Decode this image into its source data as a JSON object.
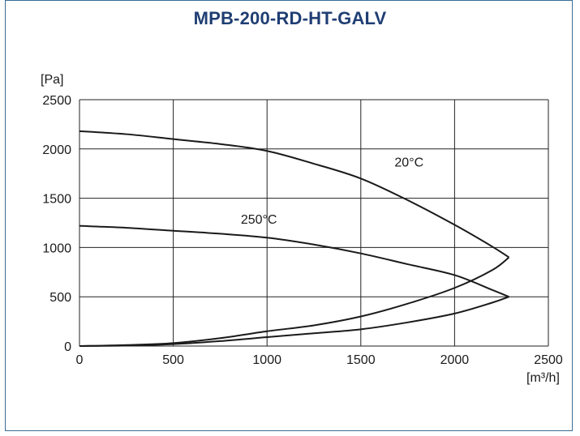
{
  "chart_data": {
    "type": "line",
    "title": "MPB-200-RD-HT-GALV",
    "ylabel": "[Pa]",
    "xlabel": "[m³/h]",
    "xlim": [
      0,
      2500
    ],
    "ylim": [
      0,
      2500
    ],
    "xticks": [
      0,
      500,
      1000,
      1500,
      2000,
      2500
    ],
    "yticks": [
      0,
      500,
      1000,
      1500,
      2000,
      2500
    ],
    "grid": true,
    "series": [
      {
        "name": "20°C",
        "x": [
          0,
          250,
          500,
          750,
          1000,
          1250,
          1500,
          1750,
          2000,
          2200,
          2290
        ],
        "y": [
          2180,
          2150,
          2100,
          2050,
          1980,
          1850,
          1700,
          1480,
          1230,
          1010,
          900
        ]
      },
      {
        "name": "250°C",
        "x": [
          0,
          250,
          500,
          750,
          1000,
          1250,
          1500,
          1750,
          2000,
          2200,
          2290
        ],
        "y": [
          1220,
          1200,
          1170,
          1140,
          1100,
          1030,
          940,
          830,
          720,
          570,
          500
        ]
      },
      {
        "name": "",
        "x": [
          0,
          250,
          500,
          750,
          1000,
          1250,
          1500,
          1750,
          2000,
          2200,
          2290
        ],
        "y": [
          0,
          10,
          30,
          80,
          150,
          210,
          300,
          430,
          590,
          770,
          900
        ]
      },
      {
        "name": "",
        "x": [
          0,
          250,
          500,
          750,
          1000,
          1250,
          1500,
          1750,
          2000,
          2200,
          2290
        ],
        "y": [
          0,
          5,
          20,
          50,
          90,
          130,
          170,
          240,
          330,
          440,
          500
        ]
      }
    ],
    "annotations": [
      {
        "text": "20°C",
        "x": 1680,
        "y": 1820
      },
      {
        "text": "250°C",
        "x": 860,
        "y": 1240
      }
    ]
  }
}
